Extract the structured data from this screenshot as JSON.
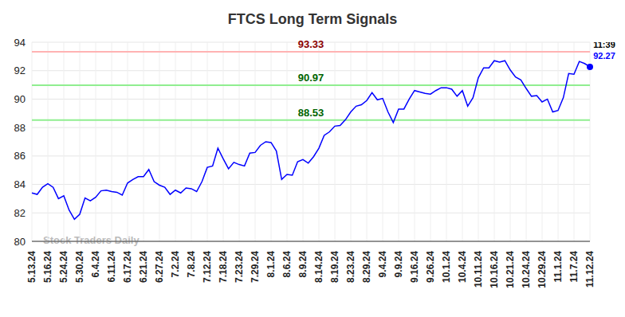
{
  "chart_data": {
    "type": "line",
    "title": "FTCS Long Term Signals",
    "categories": [
      "5.13.24",
      null,
      null,
      "5.16.24",
      null,
      null,
      "5.24.24",
      null,
      null,
      "5.30.24",
      null,
      null,
      "6.4.24",
      null,
      null,
      "6.11.24",
      null,
      null,
      "6.17.24",
      null,
      null,
      "6.21.24",
      null,
      null,
      "6.27.24",
      null,
      null,
      "7.2.24",
      null,
      null,
      "7.8.24",
      null,
      null,
      "7.12.24",
      null,
      null,
      "7.18.24",
      null,
      null,
      "7.23.24",
      null,
      null,
      "7.29.24",
      null,
      null,
      "8.1.24",
      null,
      null,
      "8.6.24",
      null,
      null,
      "8.9.24",
      null,
      null,
      "8.14.24",
      null,
      null,
      "8.19.24",
      null,
      null,
      "8.23.24",
      null,
      null,
      "8.29.24",
      null,
      null,
      "9.4.24",
      null,
      null,
      "9.9.24",
      null,
      null,
      "9.16.24",
      null,
      null,
      "9.26.24",
      null,
      null,
      "10.1.24",
      null,
      null,
      "10.4.24",
      null,
      null,
      "10.11.24",
      null,
      null,
      "10.16.24",
      null,
      null,
      "10.21.24",
      null,
      null,
      "10.24.24",
      null,
      null,
      "10.29.24",
      null,
      null,
      "11.1.24",
      null,
      null,
      "11.7.24",
      null,
      null,
      "11.12.24"
    ],
    "values": [
      83.4,
      83.3,
      83.8,
      84.05,
      83.8,
      83.0,
      83.2,
      82.2,
      81.55,
      81.9,
      83.05,
      82.85,
      83.1,
      83.55,
      83.6,
      83.5,
      83.45,
      83.25,
      84.1,
      84.35,
      84.55,
      84.55,
      85.05,
      84.2,
      83.95,
      83.8,
      83.3,
      83.6,
      83.4,
      83.75,
      83.7,
      83.5,
      84.2,
      85.2,
      85.3,
      86.55,
      85.8,
      85.1,
      85.55,
      85.4,
      85.3,
      86.2,
      86.25,
      86.75,
      87.0,
      86.95,
      86.35,
      84.35,
      84.7,
      84.65,
      85.6,
      85.75,
      85.5,
      85.95,
      86.55,
      87.45,
      87.7,
      88.1,
      88.15,
      88.55,
      89.1,
      89.5,
      89.6,
      89.9,
      90.45,
      89.95,
      90.05,
      89.1,
      88.35,
      89.3,
      89.3,
      90.0,
      90.6,
      90.5,
      90.4,
      90.35,
      90.6,
      90.8,
      90.8,
      90.7,
      90.2,
      90.6,
      89.5,
      90.1,
      91.5,
      92.2,
      92.2,
      92.7,
      92.6,
      92.7,
      92.05,
      91.55,
      91.35,
      90.75,
      90.2,
      90.25,
      89.8,
      90.0,
      89.1,
      89.2,
      90.1,
      91.8,
      91.75,
      92.65,
      92.5,
      92.27
    ],
    "color": "#0000ff",
    "ylim": [
      80,
      94
    ],
    "yticks": [
      80,
      82,
      84,
      86,
      88,
      90,
      92,
      94
    ],
    "grid": true,
    "reference_lines": [
      {
        "value": 93.33,
        "color": "#ffb3b3",
        "label_color": "#8b0000"
      },
      {
        "value": 90.97,
        "color": "#90ee90",
        "label_color": "#006400"
      },
      {
        "value": 88.53,
        "color": "#90ee90",
        "label_color": "#006400"
      }
    ],
    "annotations": [
      {
        "text": "11:39"
      },
      {
        "text": "Stock Traders Daily"
      }
    ]
  }
}
